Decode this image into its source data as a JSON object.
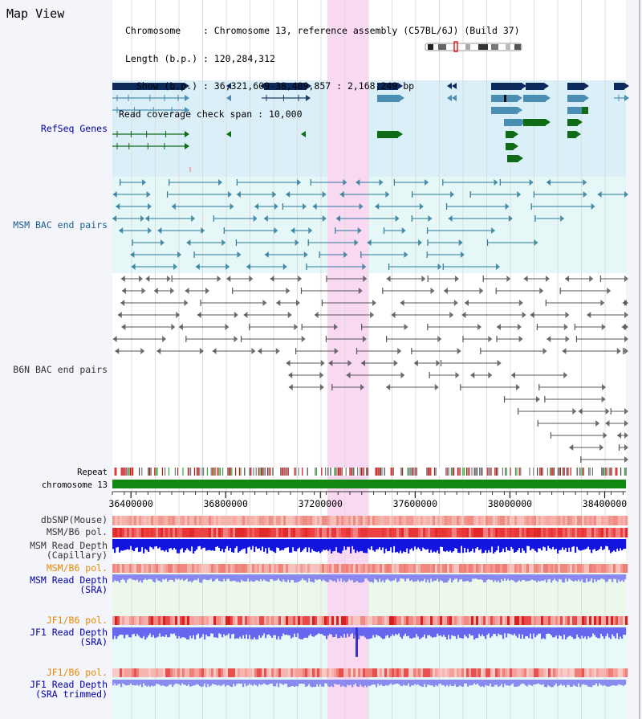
{
  "title": "Map View",
  "info": {
    "chromosome_key": "Chromosome   ",
    "chromosome_val": "Chromosome 13, reference assembly (C57BL/6J) (Build 37)",
    "length_key": "Length (b.p.)",
    "length_val": "120,284,312",
    "show_key": "  Show (b.p.)",
    "show_val": "36,321,609-38,489,857 : 2,168,249 bp",
    "coverage_key": "Read coverage check span",
    "coverage_val": "10,000"
  },
  "tracks": {
    "refseq": {
      "label": "RefSeq Genes",
      "color": "#1a1a99"
    },
    "msm_bac": {
      "label": "MSM BAC end pairs",
      "color": "#1a5f8a"
    },
    "b6n_bac": {
      "label": "B6N BAC end pairs",
      "color": "#333333"
    },
    "repeat": {
      "label": "Repeat"
    },
    "chromosome": {
      "label": "chromosome 13"
    },
    "dbsnp": {
      "label": "dbSNP(Mouse)"
    },
    "msm_b6_pol": {
      "label": "MSM/B6 pol."
    },
    "msm_depth_cap": {
      "label1": "MSM Read Depth",
      "label2": "(Capillary)"
    },
    "msm_b6_pol2": {
      "label": "MSM/B6 pol."
    },
    "msm_depth_sra": {
      "label1": "MSM Read Depth",
      "label2": "(SRA)"
    },
    "jf1_b6_pol": {
      "label": "JF1/B6 pol."
    },
    "jf1_depth_sra": {
      "label1": "JF1 Read Depth",
      "label2": "(SRA)"
    },
    "jf1_b6_pol2": {
      "label": "JF1/B6 pol."
    },
    "jf1_depth_trim": {
      "label1": "JF1 Read Depth",
      "label2": "(SRA trimmed)"
    }
  },
  "axis": {
    "ticks": [
      "36400000",
      "36800000",
      "37200000",
      "37600000",
      "38000000",
      "38400000"
    ],
    "start": 36321609,
    "end": 38489857
  },
  "highlight": {
    "start": 37230000,
    "end": 37400000
  },
  "colors": {
    "refseq_bg": "#dbeff9",
    "msm_bg": "#e6f7f7",
    "highlight": "#f9d8f2",
    "navy_gene": "#0d2a5c",
    "blue_gene": "#4a8fb3",
    "green_gene": "#0f6b15",
    "orange_label": "#e38a00",
    "blue_label": "#0000aa",
    "chrom_bar": "#118811"
  }
}
